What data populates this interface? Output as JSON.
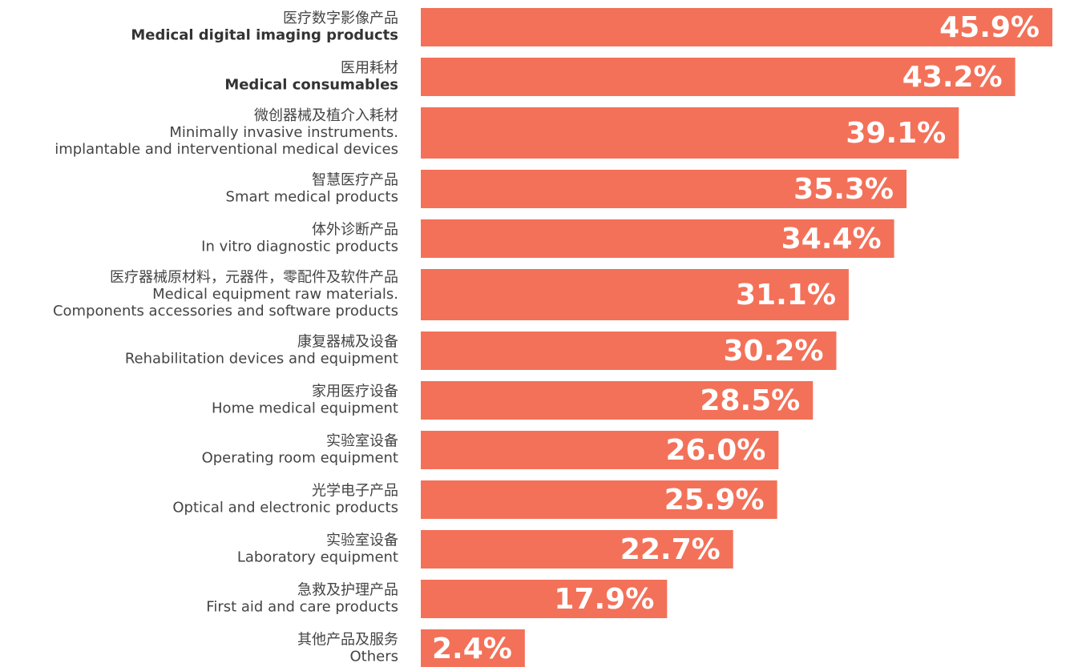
{
  "chart_data": {
    "type": "barh",
    "color": "#f37159",
    "categories": [
      [
        "医疗数字影像产品",
        "Medical digital imaging products"
      ],
      [
        "医用耗材",
        "Medical consumables"
      ],
      [
        "微创器械及植介入耗材",
        "Minimally invasive instruments.",
        "implantable and interventional medical devices"
      ],
      [
        "智慧医疗产品",
        "Smart medical products"
      ],
      [
        "体外诊断产品",
        "In vitro diagnostic products"
      ],
      [
        "医疗器械原材料，元器件，零配件及软件产品",
        "Medical equipment raw materials.",
        "Components accessories and software products"
      ],
      [
        "康复器械及设备",
        "Rehabilitation devices and equipment"
      ],
      [
        "家用医疗设备",
        "Home medical equipment"
      ],
      [
        "实验室设备",
        "Operating room equipment"
      ],
      [
        "光学电子产品",
        "Optical and electronic products"
      ],
      [
        "实验室设备",
        "Laboratory equipment"
      ],
      [
        "急救及护理产品",
        "First aid and care products"
      ],
      [
        "其他产品及服务",
        "Others"
      ]
    ],
    "values": [
      45.9,
      43.2,
      39.1,
      35.3,
      34.4,
      31.1,
      30.2,
      28.5,
      26.0,
      25.9,
      22.7,
      17.9,
      2.4
    ],
    "value_labels": [
      "45.9%",
      "43.2%",
      "39.1%",
      "35.3%",
      "34.4%",
      "31.1%",
      "30.2%",
      "28.5%",
      "26.0%",
      "25.9%",
      "22.7%",
      "17.9%",
      "2.4%"
    ]
  }
}
